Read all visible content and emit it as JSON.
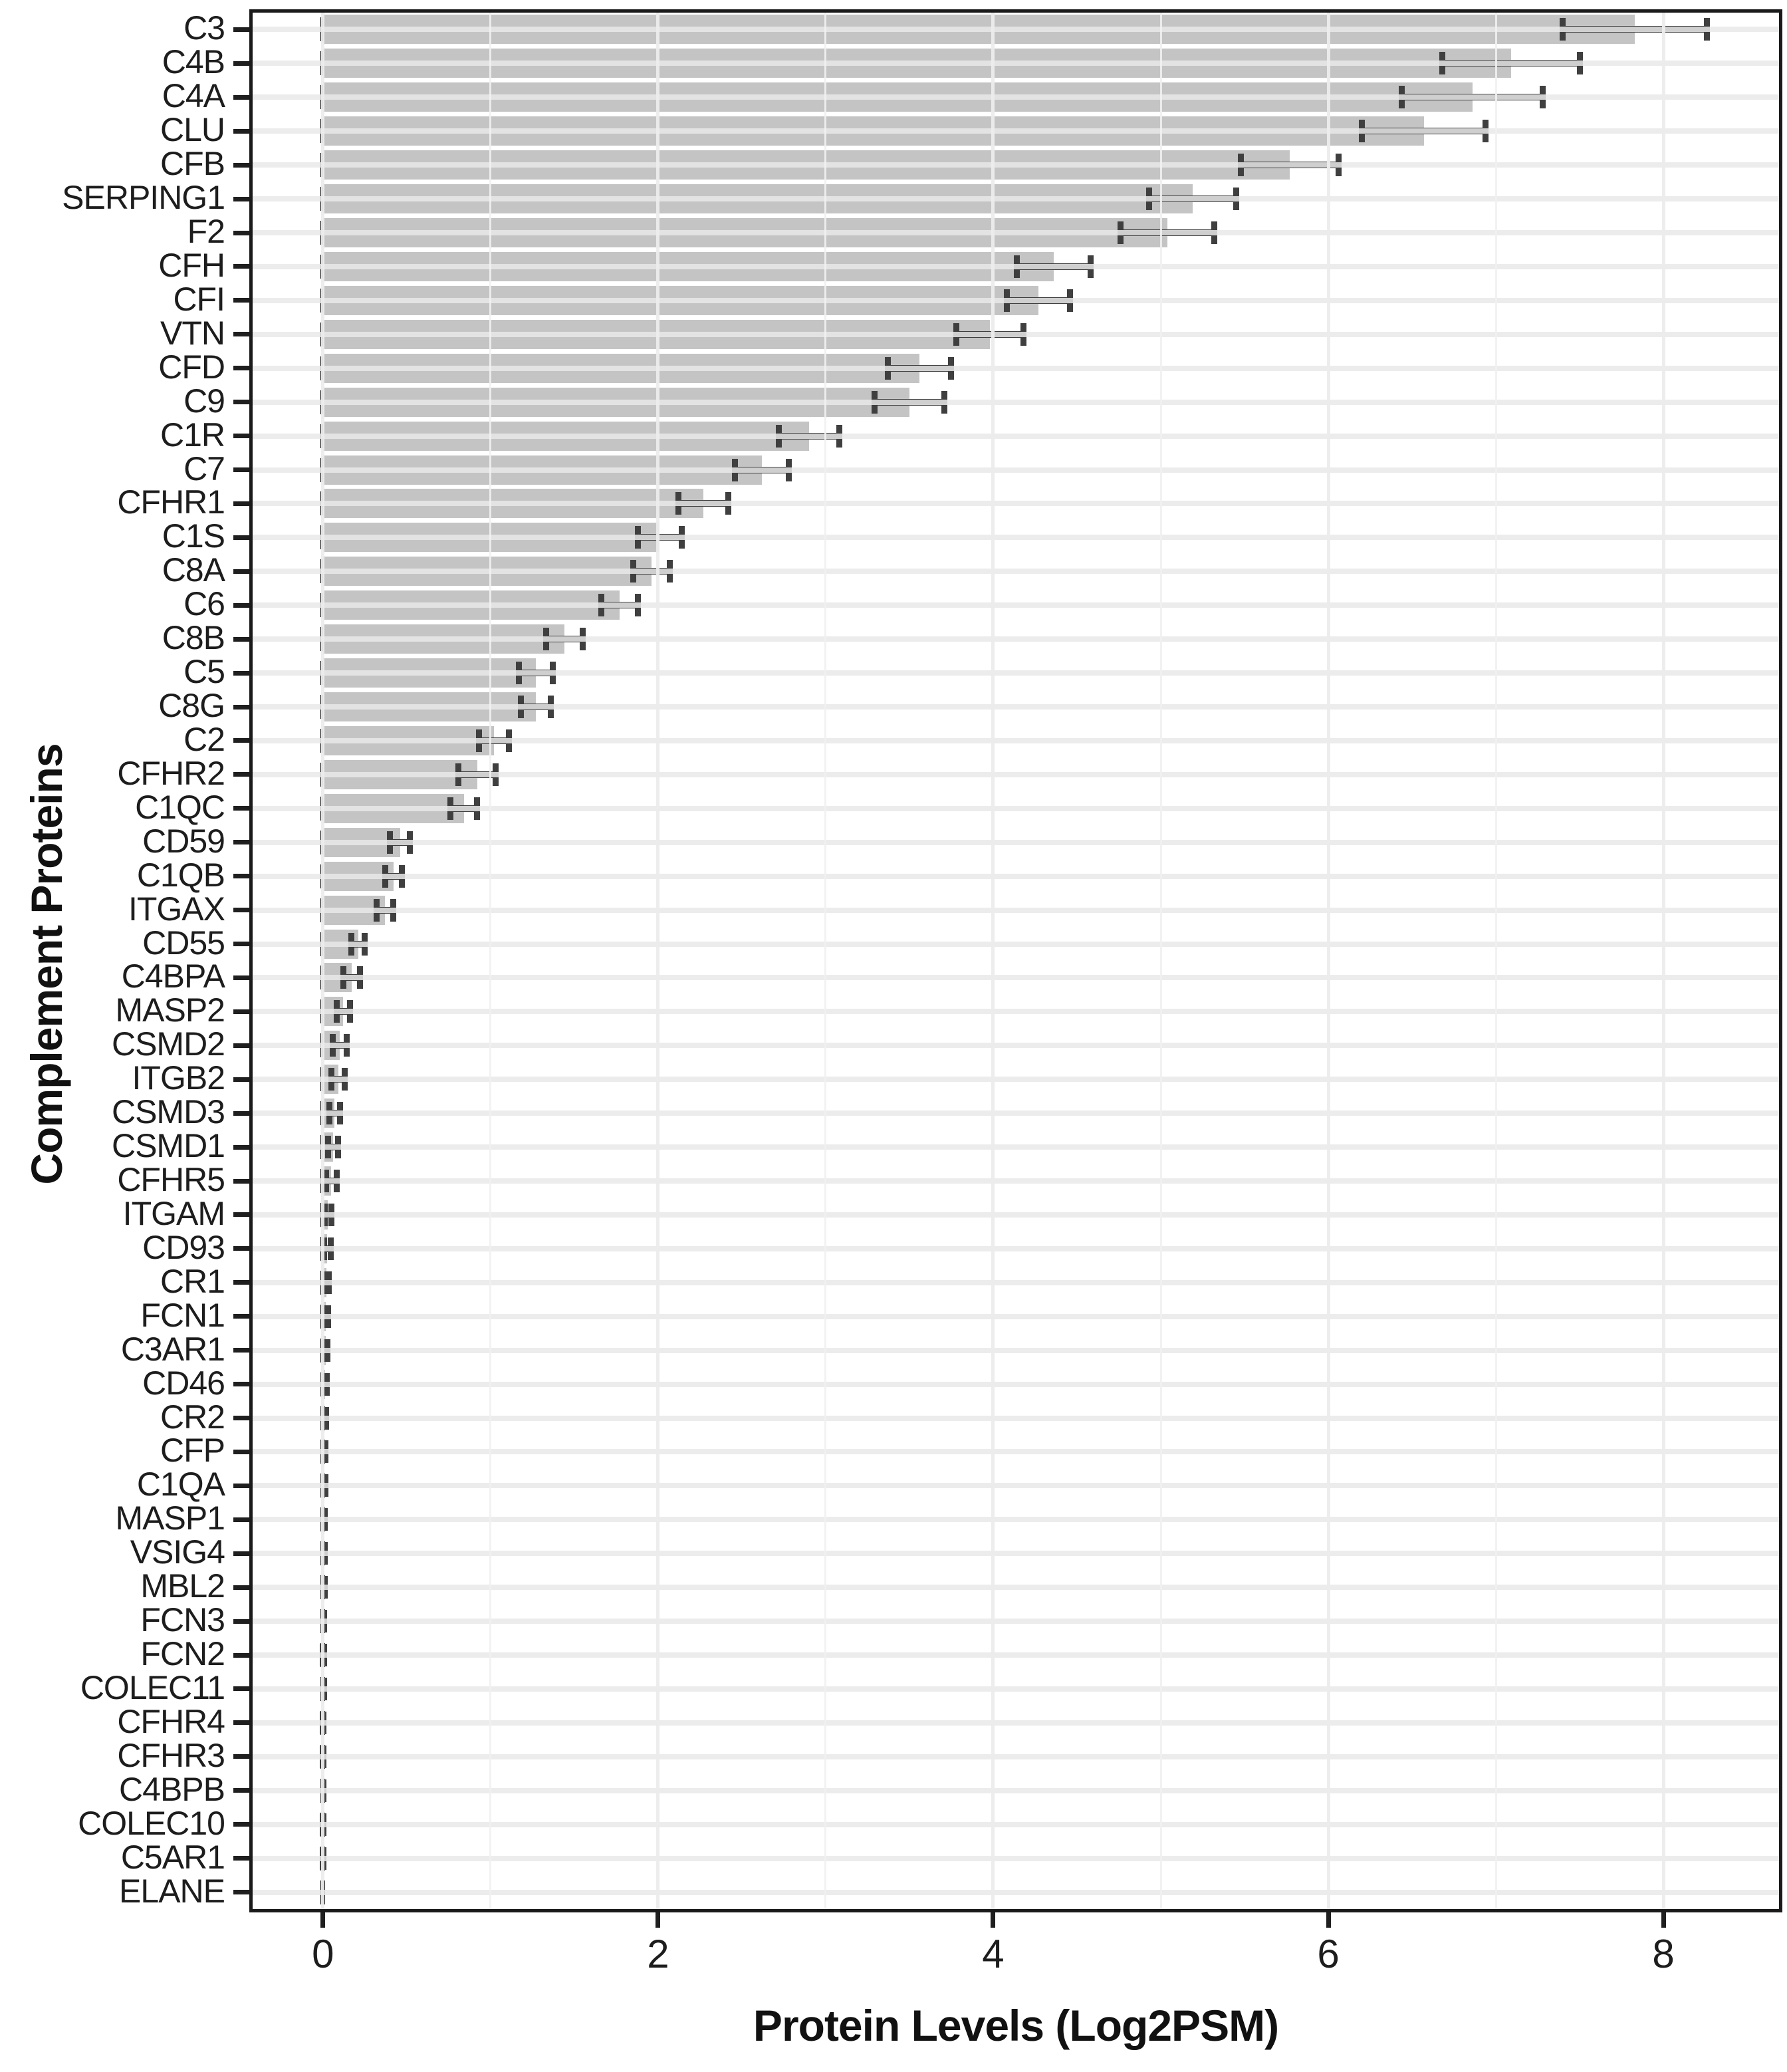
{
  "chart_data": {
    "type": "bar",
    "orientation": "horizontal",
    "title": "",
    "xlabel": "Protein Levels (Log2PSM)",
    "ylabel": "Complement Proteins",
    "xticks": [
      0,
      2,
      4,
      6,
      8
    ],
    "xlim": [
      -0.42,
      8.69
    ],
    "grid": "on",
    "legend": "none",
    "zero_line": "dashed",
    "colors": {
      "bar_fill": "#c4c4c4",
      "error_bar": "#3f3f3f",
      "grid_line": "#e9e9e9",
      "axis_text": "#1d1d1d",
      "panel_border": "#1a1a1a"
    },
    "categories": [
      "C3",
      "C4B",
      "C4A",
      "CLU",
      "CFB",
      "SERPING1",
      "F2",
      "CFH",
      "CFI",
      "VTN",
      "CFD",
      "C9",
      "C1R",
      "C7",
      "CFHR1",
      "C1S",
      "C8A",
      "C6",
      "C8B",
      "C5",
      "C8G",
      "C2",
      "CFHR2",
      "C1QC",
      "CD59",
      "C1QB",
      "ITGAX",
      "CD55",
      "C4BPA",
      "MASP2",
      "CSMD2",
      "ITGB2",
      "CSMD3",
      "CSMD1",
      "CFHR5",
      "ITGAM",
      "CD93",
      "CR1",
      "FCN1",
      "C3AR1",
      "CD46",
      "CR2",
      "CFP",
      "C1QA",
      "MASP1",
      "VSIG4",
      "MBL2",
      "FCN3",
      "FCN2",
      "COLEC11",
      "CFHR4",
      "CFHR3",
      "C4BPB",
      "COLEC10",
      "C5AR1",
      "ELANE"
    ],
    "values": [
      7.83,
      7.09,
      6.86,
      6.57,
      5.77,
      5.19,
      5.04,
      4.36,
      4.27,
      3.98,
      3.56,
      3.5,
      2.9,
      2.62,
      2.27,
      2.01,
      1.96,
      1.77,
      1.44,
      1.27,
      1.27,
      1.02,
      0.92,
      0.84,
      0.46,
      0.42,
      0.37,
      0.21,
      0.17,
      0.12,
      0.1,
      0.09,
      0.07,
      0.06,
      0.05,
      0.03,
      0.025,
      0.02,
      0.018,
      0.015,
      0.012,
      0.01,
      0.009,
      0.008,
      0.007,
      0.006,
      0.005,
      0.004,
      0.003,
      0.003,
      0.002,
      0.002,
      0.002,
      0.001,
      0.001,
      0
    ],
    "errors": [
      0.43,
      0.41,
      0.42,
      0.37,
      0.29,
      0.26,
      0.28,
      0.22,
      0.19,
      0.2,
      0.19,
      0.21,
      0.18,
      0.16,
      0.15,
      0.13,
      0.11,
      0.11,
      0.11,
      0.1,
      0.09,
      0.09,
      0.11,
      0.08,
      0.06,
      0.05,
      0.05,
      0.04,
      0.05,
      0.04,
      0.04,
      0.04,
      0.03,
      0.03,
      0.03,
      0.02,
      0.02,
      0.015,
      0.012,
      0.01,
      0.009,
      0.008,
      0.007,
      0.006,
      0.005,
      0.005,
      0.004,
      0.003,
      0.003,
      0.002,
      0.002,
      0.002,
      0.001,
      0.001,
      0.001,
      0
    ]
  }
}
